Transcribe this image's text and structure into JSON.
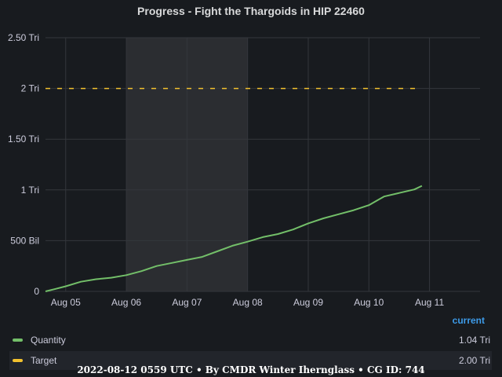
{
  "panel": {
    "title": "Progress - Fight the Thargoids in HIP 22460"
  },
  "chart_data": {
    "type": "line",
    "title": "Progress - Fight the Thargoids in HIP 22460",
    "xlabel": "",
    "ylabel": "",
    "ylim": [
      0,
      2500000000000
    ],
    "y_ticks": [
      {
        "value": 0,
        "label": "0"
      },
      {
        "value": 500000000000,
        "label": "500 Bil"
      },
      {
        "value": 1000000000000,
        "label": "1 Tri"
      },
      {
        "value": 1500000000000,
        "label": "1.50 Tri"
      },
      {
        "value": 2000000000000,
        "label": "2 Tri"
      },
      {
        "value": 2500000000000,
        "label": "2.50 Tri"
      }
    ],
    "xlim": [
      "2022-08-04 16:00",
      "2022-08-11 20:00"
    ],
    "x_ticks": [
      {
        "value": "2022-08-05 00:00",
        "label": "Aug 05"
      },
      {
        "value": "2022-08-06 00:00",
        "label": "Aug 06"
      },
      {
        "value": "2022-08-07 00:00",
        "label": "Aug 07"
      },
      {
        "value": "2022-08-08 00:00",
        "label": "Aug 08"
      },
      {
        "value": "2022-08-09 00:00",
        "label": "Aug 09"
      },
      {
        "value": "2022-08-10 00:00",
        "label": "Aug 10"
      },
      {
        "value": "2022-08-11 00:00",
        "label": "Aug 11"
      }
    ],
    "shaded_region": {
      "from": "2022-08-06 00:00",
      "to": "2022-08-08 00:00"
    },
    "grid": true,
    "legend_placement": "bottom",
    "series": [
      {
        "name": "Quantity",
        "color": "#73bf69",
        "current": "1.04 Tri",
        "points": [
          [
            "2022-08-04 16:00",
            0
          ],
          [
            "2022-08-04 20:00",
            25000000000
          ],
          [
            "2022-08-05 00:00",
            50000000000
          ],
          [
            "2022-08-05 06:00",
            95000000000
          ],
          [
            "2022-08-05 12:00",
            120000000000
          ],
          [
            "2022-08-05 18:00",
            135000000000
          ],
          [
            "2022-08-06 00:00",
            160000000000
          ],
          [
            "2022-08-06 06:00",
            200000000000
          ],
          [
            "2022-08-06 12:00",
            250000000000
          ],
          [
            "2022-08-06 18:00",
            280000000000
          ],
          [
            "2022-08-07 00:00",
            310000000000
          ],
          [
            "2022-08-07 06:00",
            340000000000
          ],
          [
            "2022-08-07 12:00",
            395000000000
          ],
          [
            "2022-08-07 18:00",
            450000000000
          ],
          [
            "2022-08-08 00:00",
            490000000000
          ],
          [
            "2022-08-08 06:00",
            535000000000
          ],
          [
            "2022-08-08 12:00",
            565000000000
          ],
          [
            "2022-08-08 18:00",
            610000000000
          ],
          [
            "2022-08-09 00:00",
            670000000000
          ],
          [
            "2022-08-09 06:00",
            720000000000
          ],
          [
            "2022-08-09 12:00",
            760000000000
          ],
          [
            "2022-08-09 18:00",
            800000000000
          ],
          [
            "2022-08-10 00:00",
            850000000000
          ],
          [
            "2022-08-10 06:00",
            935000000000
          ],
          [
            "2022-08-10 12:00",
            970000000000
          ],
          [
            "2022-08-10 18:00",
            1005000000000
          ],
          [
            "2022-08-10 21:00",
            1040000000000
          ]
        ]
      },
      {
        "name": "Target",
        "color": "#f2c12e",
        "style": "dashed",
        "current": "2.00 Tri",
        "points": [
          [
            "2022-08-04 16:00",
            2000000000000
          ],
          [
            "2022-08-10 21:00",
            2000000000000
          ]
        ]
      }
    ]
  },
  "legend": {
    "header": "current",
    "items": [
      {
        "name": "Quantity",
        "value": "1.04 Tri",
        "color": "#73bf69"
      },
      {
        "name": "Target",
        "value": "2.00 Tri",
        "color": "#f2c12e"
      }
    ]
  },
  "footer": {
    "text": "2022-08-12 0559 UTC • By CMDR Winter Ihernglass • CG ID: 744"
  }
}
